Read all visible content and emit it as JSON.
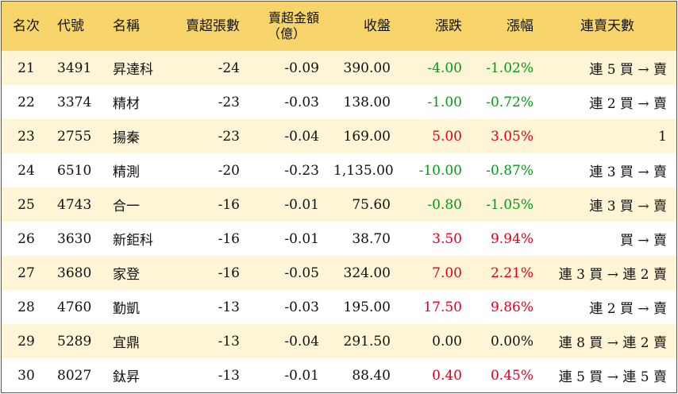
{
  "headers": {
    "rank": "名次",
    "code": "代號",
    "name": "名稱",
    "sell_lots": "賣超張數",
    "sell_amount_line1": "賣超金額",
    "sell_amount_line2": "（億）",
    "close": "收盤",
    "change": "漲跌",
    "change_pct": "漲幅",
    "streak": "連賣天數"
  },
  "colors": {
    "header_bg": "#f7d56b",
    "odd_row_bg": "#fdf5d5",
    "up": "#e0001b",
    "down": "#009b18"
  },
  "rows": [
    {
      "rank": "21",
      "code": "3491",
      "name": "昇達科",
      "sell_lots": "-24",
      "sell_amount": "-0.09",
      "close": "390.00",
      "change": "-4.00",
      "change_pct": "-1.02%",
      "trend": "down",
      "streak": "連 5 買 → 賣"
    },
    {
      "rank": "22",
      "code": "3374",
      "name": "精材",
      "sell_lots": "-23",
      "sell_amount": "-0.03",
      "close": "138.00",
      "change": "-1.00",
      "change_pct": "-0.72%",
      "trend": "down",
      "streak": "連 2 買 → 賣"
    },
    {
      "rank": "23",
      "code": "2755",
      "name": "揚秦",
      "sell_lots": "-23",
      "sell_amount": "-0.04",
      "close": "169.00",
      "change": "5.00",
      "change_pct": "3.05%",
      "trend": "up",
      "streak": "1"
    },
    {
      "rank": "24",
      "code": "6510",
      "name": "精測",
      "sell_lots": "-20",
      "sell_amount": "-0.23",
      "close": "1,135.00",
      "change": "-10.00",
      "change_pct": "-0.87%",
      "trend": "down",
      "streak": "連 3 買 → 賣"
    },
    {
      "rank": "25",
      "code": "4743",
      "name": "合一",
      "sell_lots": "-16",
      "sell_amount": "-0.01",
      "close": "75.60",
      "change": "-0.80",
      "change_pct": "-1.05%",
      "trend": "down",
      "streak": "連 3 買 → 賣"
    },
    {
      "rank": "26",
      "code": "3630",
      "name": "新鉅科",
      "sell_lots": "-16",
      "sell_amount": "-0.01",
      "close": "38.70",
      "change": "3.50",
      "change_pct": "9.94%",
      "trend": "up",
      "streak": "買 → 賣"
    },
    {
      "rank": "27",
      "code": "3680",
      "name": "家登",
      "sell_lots": "-16",
      "sell_amount": "-0.05",
      "close": "324.00",
      "change": "7.00",
      "change_pct": "2.21%",
      "trend": "up",
      "streak": "連 3 買 → 連 2 賣"
    },
    {
      "rank": "28",
      "code": "4760",
      "name": "勤凱",
      "sell_lots": "-13",
      "sell_amount": "-0.03",
      "close": "195.00",
      "change": "17.50",
      "change_pct": "9.86%",
      "trend": "up",
      "streak": "連 2 買 → 賣"
    },
    {
      "rank": "29",
      "code": "5289",
      "name": "宜鼎",
      "sell_lots": "-13",
      "sell_amount": "-0.04",
      "close": "291.50",
      "change": "0.00",
      "change_pct": "0.00%",
      "trend": "flat",
      "streak": "連 8 買 → 連 2 賣"
    },
    {
      "rank": "30",
      "code": "8027",
      "name": "鈦昇",
      "sell_lots": "-13",
      "sell_amount": "-0.01",
      "close": "88.40",
      "change": "0.40",
      "change_pct": "0.45%",
      "trend": "up",
      "streak": "連 5 買 → 連 5 賣"
    }
  ]
}
